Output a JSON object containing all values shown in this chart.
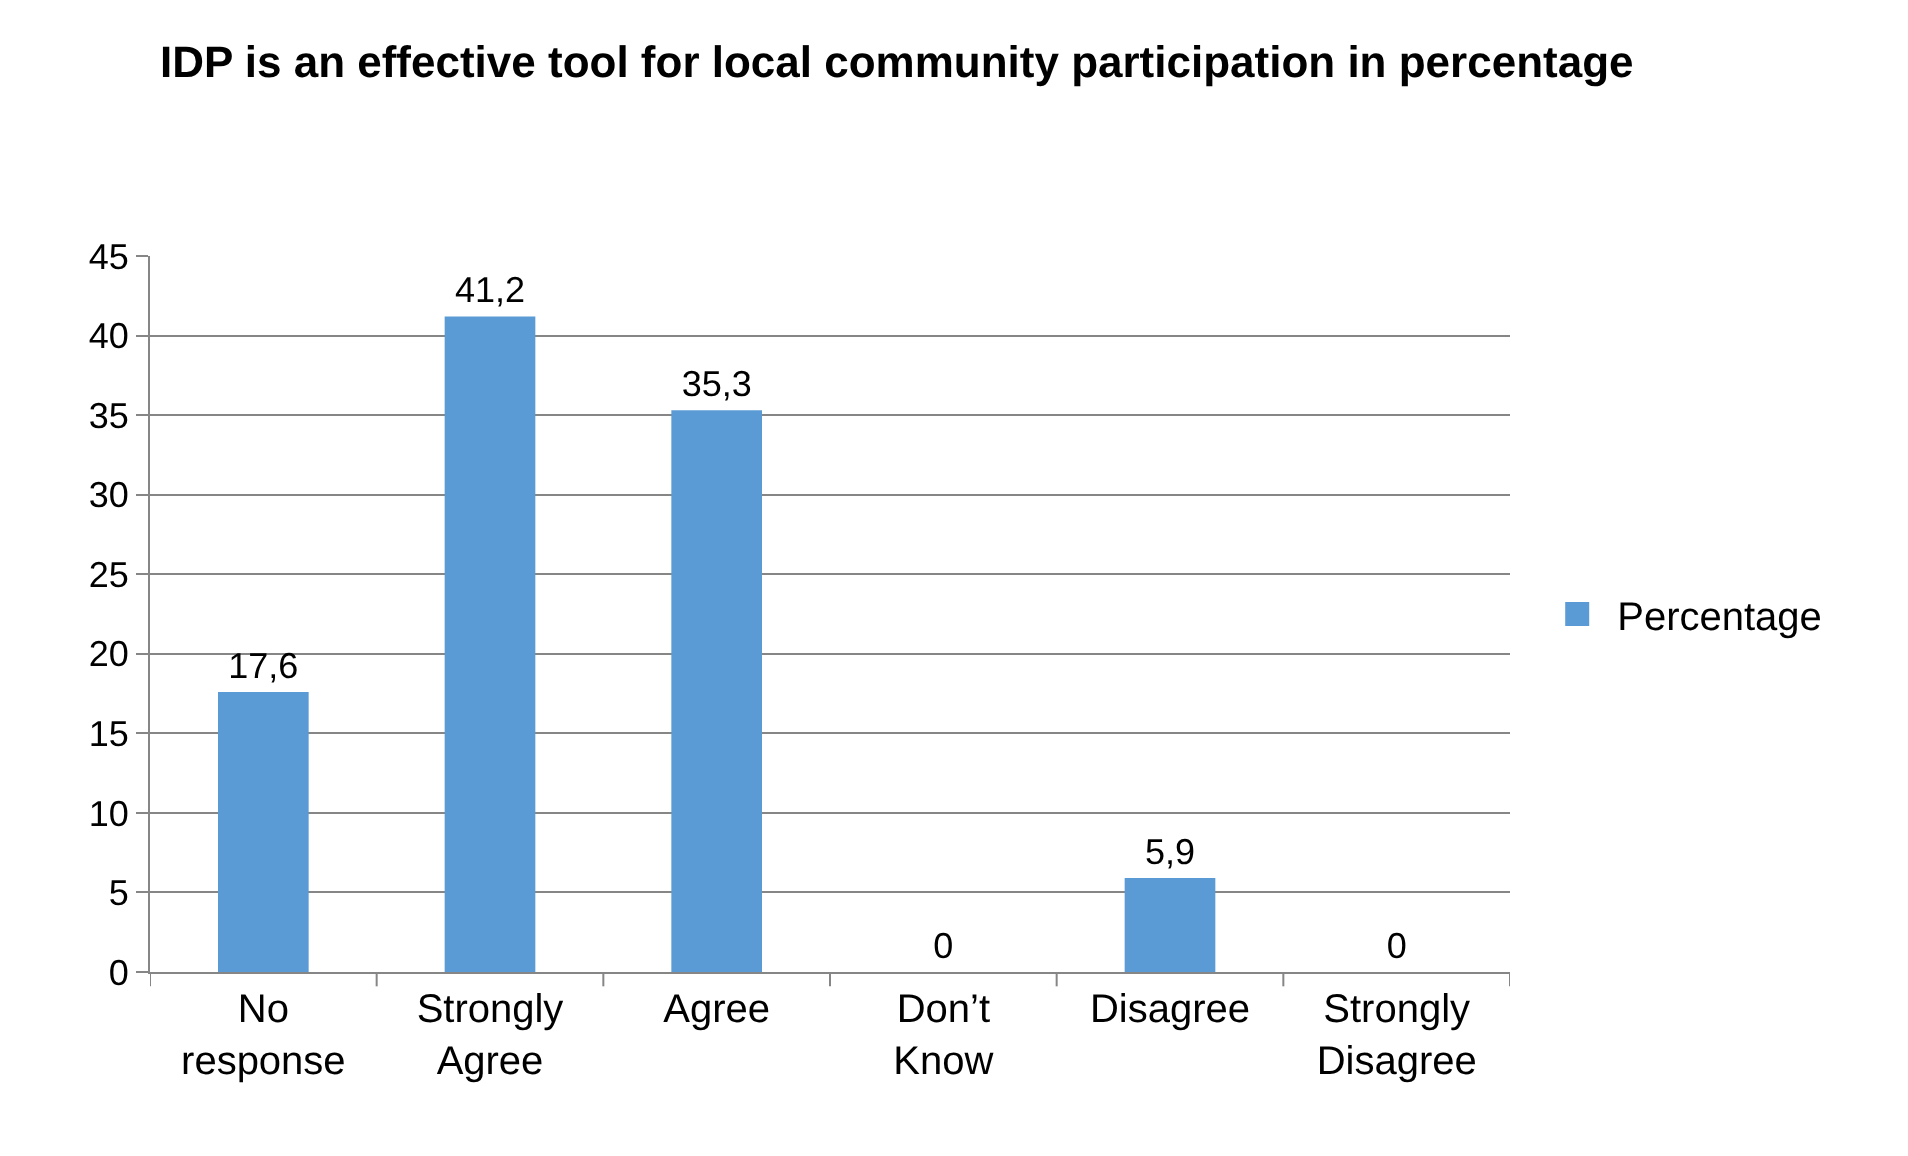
{
  "chart_data": {
    "type": "bar",
    "title": "IDP is an effective tool for local community participation in percentage",
    "categories": [
      "No response",
      "Strongly Agree",
      "Agree",
      "Don’t Know",
      "Disagree",
      "Strongly Disagree"
    ],
    "series": [
      {
        "name": "Percentage",
        "color": "#5b9bd5",
        "values": [
          17.6,
          41.2,
          35.3,
          0,
          5.9,
          0
        ],
        "value_labels": [
          "17,6",
          "41,2",
          "35,3",
          "0",
          "5,9",
          "0"
        ]
      }
    ],
    "ylim": [
      0,
      45
    ],
    "yticks": [
      0,
      5,
      10,
      15,
      20,
      25,
      30,
      35,
      40,
      45
    ],
    "grid": "y",
    "legend": "right"
  }
}
